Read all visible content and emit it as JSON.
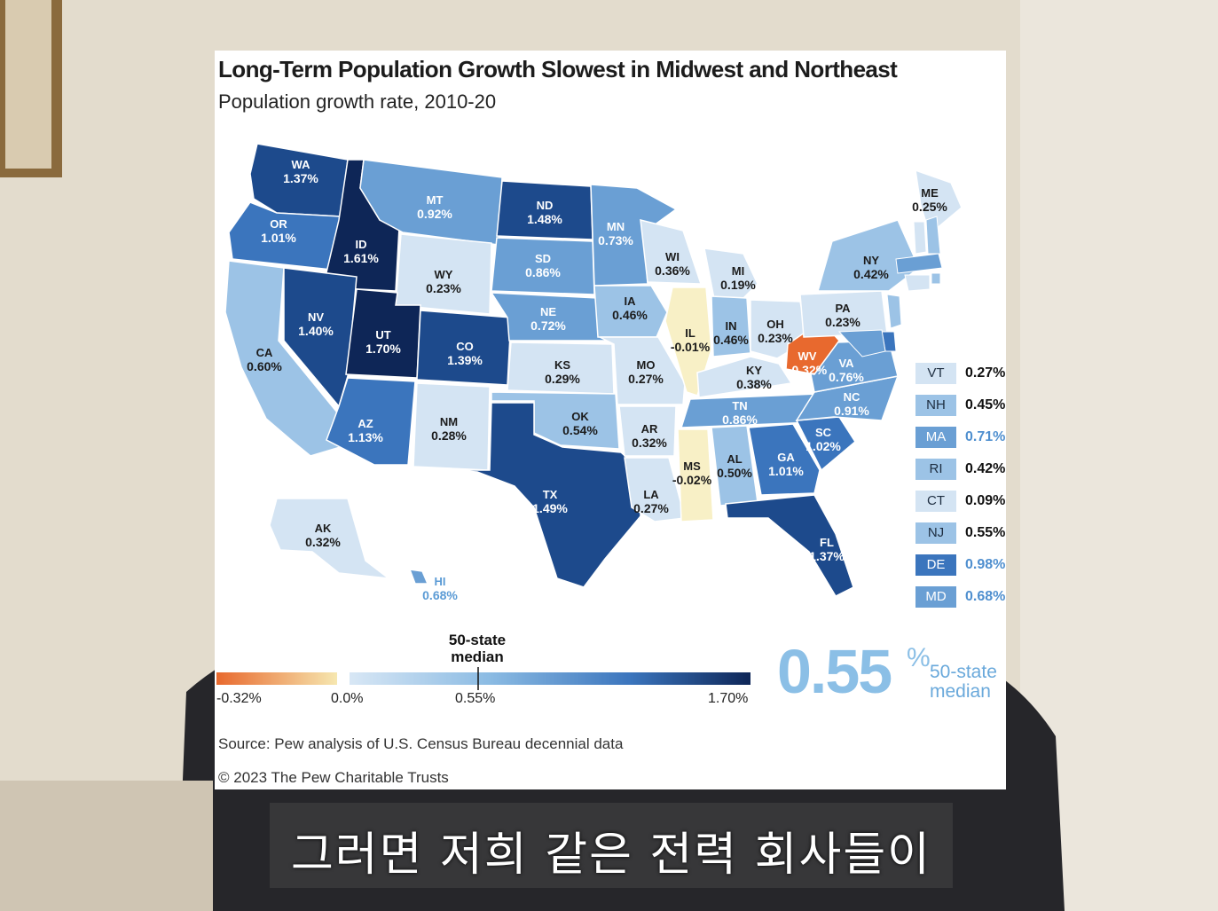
{
  "title": "Long-Term Population Growth Slowest in Midwest and Northeast",
  "subtitle": "Population growth rate, 2010-20",
  "colors": {
    "negative": "#e8692e",
    "near_zero": "#f8f0c6",
    "low": "#d4e4f3",
    "mid_low": "#9cc3e6",
    "mid": "#6a9fd4",
    "mid_high": "#3b75bd",
    "high": "#1d4a8c",
    "highest": "#0e2657"
  },
  "states": [
    {
      "abbr": "WA",
      "value": "1.37%"
    },
    {
      "abbr": "OR",
      "value": "1.01%"
    },
    {
      "abbr": "CA",
      "value": "0.60%"
    },
    {
      "abbr": "ID",
      "value": "1.61%"
    },
    {
      "abbr": "NV",
      "value": "1.40%"
    },
    {
      "abbr": "MT",
      "value": "0.92%"
    },
    {
      "abbr": "WY",
      "value": "0.23%"
    },
    {
      "abbr": "UT",
      "value": "1.70%"
    },
    {
      "abbr": "AZ",
      "value": "1.13%"
    },
    {
      "abbr": "CO",
      "value": "1.39%"
    },
    {
      "abbr": "NM",
      "value": "0.28%"
    },
    {
      "abbr": "ND",
      "value": "1.48%"
    },
    {
      "abbr": "SD",
      "value": "0.86%"
    },
    {
      "abbr": "NE",
      "value": "0.72%"
    },
    {
      "abbr": "KS",
      "value": "0.29%"
    },
    {
      "abbr": "OK",
      "value": "0.54%"
    },
    {
      "abbr": "TX",
      "value": "1.49%"
    },
    {
      "abbr": "MN",
      "value": "0.73%"
    },
    {
      "abbr": "IA",
      "value": "0.46%"
    },
    {
      "abbr": "MO",
      "value": "0.27%"
    },
    {
      "abbr": "AR",
      "value": "0.32%"
    },
    {
      "abbr": "LA",
      "value": "0.27%"
    },
    {
      "abbr": "WI",
      "value": "0.36%"
    },
    {
      "abbr": "IL",
      "value": "-0.01%"
    },
    {
      "abbr": "MI",
      "value": "0.19%"
    },
    {
      "abbr": "IN",
      "value": "0.46%"
    },
    {
      "abbr": "OH",
      "value": "0.23%"
    },
    {
      "abbr": "KY",
      "value": "0.38%"
    },
    {
      "abbr": "TN",
      "value": "0.86%"
    },
    {
      "abbr": "MS",
      "value": "-0.02%"
    },
    {
      "abbr": "AL",
      "value": "0.50%"
    },
    {
      "abbr": "GA",
      "value": "1.01%"
    },
    {
      "abbr": "FL",
      "value": "1.37%"
    },
    {
      "abbr": "SC",
      "value": "1.02%"
    },
    {
      "abbr": "NC",
      "value": "0.91%"
    },
    {
      "abbr": "VA",
      "value": "0.76%"
    },
    {
      "abbr": "WV",
      "value": "-0.32%"
    },
    {
      "abbr": "PA",
      "value": "0.23%"
    },
    {
      "abbr": "NY",
      "value": "0.42%"
    },
    {
      "abbr": "ME",
      "value": "0.25%"
    },
    {
      "abbr": "AK",
      "value": "0.32%"
    },
    {
      "abbr": "HI",
      "value": "0.68%"
    }
  ],
  "small_states": [
    {
      "abbr": "VT",
      "value": "0.27%"
    },
    {
      "abbr": "NH",
      "value": "0.45%"
    },
    {
      "abbr": "MA",
      "value": "0.71%"
    },
    {
      "abbr": "RI",
      "value": "0.42%"
    },
    {
      "abbr": "CT",
      "value": "0.09%"
    },
    {
      "abbr": "NJ",
      "value": "0.55%"
    },
    {
      "abbr": "DE",
      "value": "0.98%"
    },
    {
      "abbr": "MD",
      "value": "0.68%"
    }
  ],
  "legend": {
    "median_caption_line1": "50-state",
    "median_caption_line2": "median",
    "tick_min": "-0.32%",
    "tick_zero": "0.0%",
    "tick_median": "0.55%",
    "tick_max": "1.70%"
  },
  "big_median": {
    "number": "0.55",
    "percent_sign": "%",
    "caption_line1": "50-state",
    "caption_line2": "median"
  },
  "source": "Source: Pew analysis of U.S. Census Bureau decennial data",
  "copyright": "© 2023 The Pew Charitable Trusts",
  "video_subtitle": "그러면 저희 같은 전력 회사들이"
}
